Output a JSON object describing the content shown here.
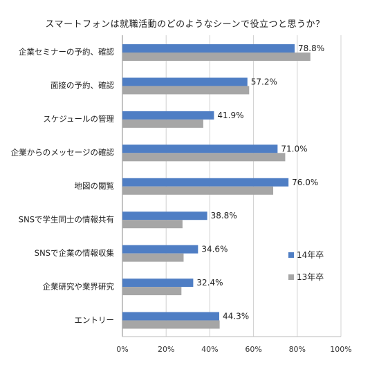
{
  "chart_data": {
    "type": "bar",
    "orientation": "horizontal",
    "title": "スマートフォンは就職活動のどのようなシーンで役立つと思うか？",
    "categories": [
      "企業セミナーの予約、確認",
      "面接の予約、確認",
      "スケジュールの管理",
      "企業からのメッセージの確認",
      "地図の閲覧",
      "SNSで学生同士の情報共有",
      "SNSで企業の情報収集",
      "企業研究や業界研究",
      "エントリー"
    ],
    "series": [
      {
        "name": "14年卒",
        "color": "#4f7ec4",
        "values": [
          78.8,
          57.2,
          41.9,
          71.0,
          76.0,
          38.8,
          34.6,
          32.4,
          44.3
        ],
        "labels": [
          "78.8%",
          "57.2%",
          "41.9%",
          "71.0%",
          "76.0%",
          "38.8%",
          "34.6%",
          "32.4%",
          "44.3%"
        ]
      },
      {
        "name": "13年卒",
        "color": "#a6a6a6",
        "values": [
          86,
          58,
          37,
          74.5,
          69,
          27.5,
          28,
          27,
          44.5
        ]
      }
    ],
    "xlim": [
      0,
      100
    ],
    "xticks": [
      "0%",
      "20%",
      "40%",
      "60%",
      "80%",
      "100%"
    ],
    "xtick_values": [
      0,
      20,
      40,
      60,
      80,
      100
    ],
    "grid": true,
    "legend_position": "right"
  }
}
